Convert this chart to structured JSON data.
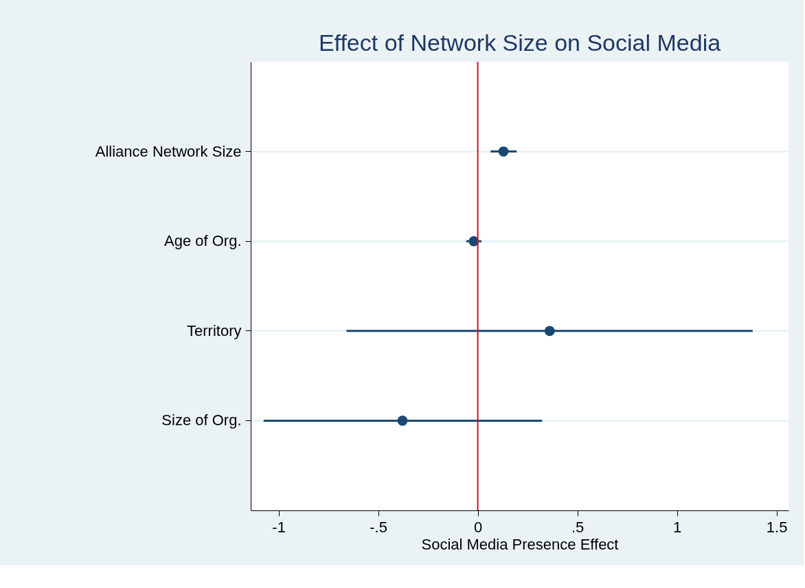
{
  "chart_data": {
    "type": "scatter",
    "orientation": "horizontal",
    "title": "Effect of Network Size on Social Media",
    "xlabel": "Social Media Presence Effect",
    "categories": [
      "Alliance Network Size",
      "Age of Org.",
      "Territory",
      "Size of Org."
    ],
    "series": [
      {
        "color": "#1a4872",
        "values": [
          0.129,
          -0.02,
          0.361,
          -0.378
        ],
        "errors": [
          [
            0.064,
            0.195
          ],
          [
            -0.058,
            0.019
          ],
          [
            -0.659,
            1.38
          ],
          [
            -1.075,
            0.323
          ]
        ]
      }
    ],
    "xlim": [
      -1.14,
      1.56
    ],
    "xticks": [
      -1,
      {
        "value": -0.5,
        "label": "-.5"
      },
      0,
      {
        "value": 0.5,
        "label": ".5"
      },
      1,
      1.5
    ],
    "ref_lines": [
      {
        "axis": "x",
        "value": 0,
        "color": "#c8102e"
      }
    ],
    "grid": "y",
    "marker": "circle"
  }
}
